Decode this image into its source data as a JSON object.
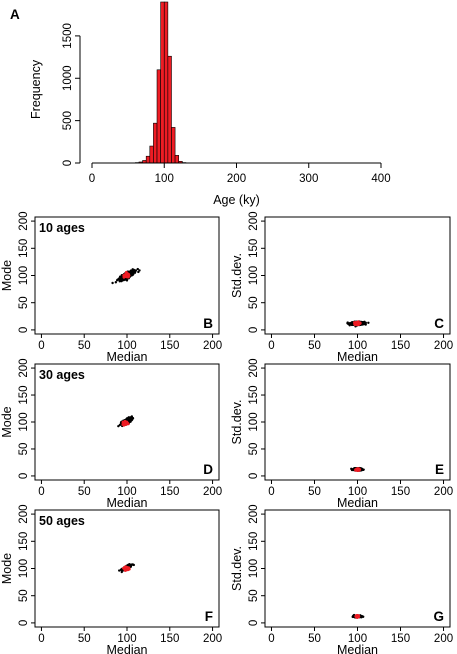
{
  "figure": {
    "panel_a_label": "A"
  },
  "chart_data": [
    {
      "panel": "A",
      "type": "bar",
      "title": "",
      "xlabel": "Age (ky)",
      "ylabel": "Frequency",
      "xlim": [
        0,
        400
      ],
      "ylim": [
        0,
        1900
      ],
      "xticks": [
        0,
        100,
        200,
        300,
        400
      ],
      "yticks": [
        0,
        500,
        1000,
        1500
      ],
      "bin_width": 5,
      "bins": [
        {
          "x0": 60,
          "x1": 65,
          "count": 5
        },
        {
          "x0": 65,
          "x1": 70,
          "count": 12
        },
        {
          "x0": 70,
          "x1": 75,
          "count": 30
        },
        {
          "x0": 75,
          "x1": 80,
          "count": 80
        },
        {
          "x0": 80,
          "x1": 85,
          "count": 200
        },
        {
          "x0": 85,
          "x1": 90,
          "count": 470
        },
        {
          "x0": 90,
          "x1": 95,
          "count": 1100
        },
        {
          "x0": 95,
          "x1": 100,
          "count": 1900
        },
        {
          "x0": 100,
          "x1": 105,
          "count": 1900
        },
        {
          "x0": 105,
          "x1": 110,
          "count": 1260
        },
        {
          "x0": 110,
          "x1": 115,
          "count": 420
        },
        {
          "x0": 115,
          "x1": 120,
          "count": 90
        },
        {
          "x0": 120,
          "x1": 125,
          "count": 20
        },
        {
          "x0": 125,
          "x1": 130,
          "count": 5
        }
      ],
      "color": "#ee1c24",
      "grid": false
    },
    {
      "panel": "B",
      "panel_label": "B",
      "panel_title": "10 ages",
      "type": "scatter",
      "xlabel": "Median",
      "ylabel": "Mode",
      "xlim": [
        0,
        200
      ],
      "ylim": [
        0,
        200
      ],
      "xticks": [
        0,
        50,
        100,
        150,
        200
      ],
      "yticks": [
        0,
        50,
        100,
        150,
        200
      ],
      "cloud": {
        "center": [
          100,
          100
        ],
        "spread": [
          10,
          10
        ],
        "shape": "diagonal"
      },
      "red_center": {
        "x": 100,
        "y": 100,
        "spread": 4
      }
    },
    {
      "panel": "C",
      "panel_label": "C",
      "panel_title": "",
      "type": "scatter",
      "xlabel": "Median",
      "ylabel": "Std.dev.",
      "xlim": [
        0,
        200
      ],
      "ylim": [
        0,
        200
      ],
      "xticks": [
        0,
        50,
        100,
        150,
        200
      ],
      "yticks": [
        0,
        50,
        100,
        150,
        200
      ],
      "cloud": {
        "center": [
          100,
          12
        ],
        "spread": [
          10,
          3
        ],
        "shape": "horizontal"
      },
      "red_center": {
        "x": 100,
        "y": 12,
        "spread": 3
      }
    },
    {
      "panel": "D",
      "panel_label": "D",
      "panel_title": "30 ages",
      "type": "scatter",
      "xlabel": "Median",
      "ylabel": "Mode",
      "xlim": [
        0,
        200
      ],
      "ylim": [
        0,
        200
      ],
      "xticks": [
        0,
        50,
        100,
        150,
        200
      ],
      "yticks": [
        0,
        50,
        100,
        150,
        200
      ],
      "cloud": {
        "center": [
          100,
          102
        ],
        "spread": [
          6,
          8
        ],
        "shape": "diagonal"
      },
      "red_center": {
        "x": 98,
        "y": 98,
        "spread": 3
      }
    },
    {
      "panel": "E",
      "panel_label": "E",
      "panel_title": "",
      "type": "scatter",
      "xlabel": "Median",
      "ylabel": "Std.dev.",
      "xlim": [
        0,
        200
      ],
      "ylim": [
        0,
        200
      ],
      "xticks": [
        0,
        50,
        100,
        150,
        200
      ],
      "yticks": [
        0,
        50,
        100,
        150,
        200
      ],
      "cloud": {
        "center": [
          100,
          12
        ],
        "spread": [
          6,
          2
        ],
        "shape": "horizontal"
      },
      "red_center": {
        "x": 100,
        "y": 12,
        "spread": 2
      }
    },
    {
      "panel": "F",
      "panel_label": "F",
      "panel_title": "50 ages",
      "type": "scatter",
      "xlabel": "Median",
      "ylabel": "Mode",
      "xlim": [
        0,
        200
      ],
      "ylim": [
        0,
        200
      ],
      "xticks": [
        0,
        50,
        100,
        150,
        200
      ],
      "yticks": [
        0,
        50,
        100,
        150,
        200
      ],
      "cloud": {
        "center": [
          100,
          102
        ],
        "spread": [
          5,
          6
        ],
        "shape": "diagonal"
      },
      "red_center": {
        "x": 99,
        "y": 100,
        "spread": 3
      }
    },
    {
      "panel": "G",
      "panel_label": "G",
      "panel_title": "",
      "type": "scatter",
      "xlabel": "Median",
      "ylabel": "Std.dev.",
      "xlim": [
        0,
        200
      ],
      "ylim": [
        0,
        200
      ],
      "xticks": [
        0,
        50,
        100,
        150,
        200
      ],
      "yticks": [
        0,
        50,
        100,
        150,
        200
      ],
      "cloud": {
        "center": [
          100,
          12
        ],
        "spread": [
          5,
          1.5
        ],
        "shape": "horizontal"
      },
      "red_center": {
        "x": 100,
        "y": 12,
        "spread": 2
      }
    }
  ],
  "colors": {
    "bar_fill": "#ee1c24",
    "bar_stroke": "#000000",
    "cloud_points": "#000000",
    "center_points": "#ee1c24"
  }
}
